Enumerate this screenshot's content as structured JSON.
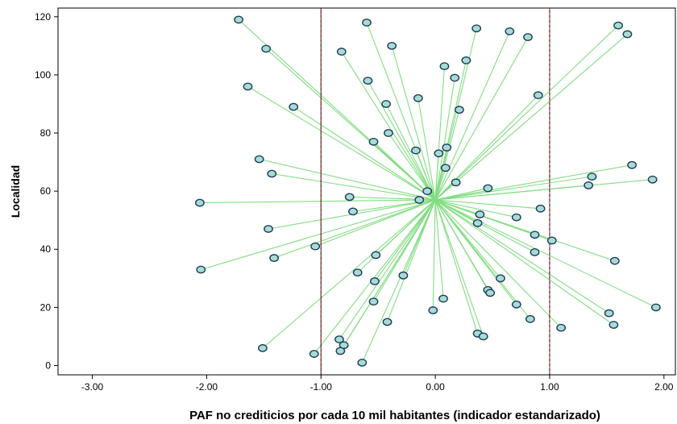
{
  "chart_data": {
    "type": "scatter",
    "xlabel": "PAF no crediticios por cada 10 mil habitantes (indicador estandarizado)",
    "ylabel": "Localidad",
    "xlim": [
      -3.3,
      2.1
    ],
    "ylim": [
      -3.2,
      123
    ],
    "x_ticks": [
      "-3.00",
      "-2.00",
      "-1.00",
      "0.00",
      "1.00",
      "2.00"
    ],
    "y_ticks": [
      "0",
      "20",
      "40",
      "60",
      "80",
      "100",
      "120"
    ],
    "reference_lines_x": [
      -1.0,
      1.0
    ],
    "centroid": [
      0.0,
      57
    ],
    "grid": false,
    "colors": {
      "marker_fill": "#a7dcd5",
      "marker_edge": "#1d3a5a",
      "spoke": "#82dd82",
      "reference_line": "#c0392b",
      "frame": "#000000"
    },
    "points": [
      {
        "x": -1.72,
        "y": 119
      },
      {
        "x": -0.6,
        "y": 118
      },
      {
        "x": 1.6,
        "y": 117
      },
      {
        "x": 0.36,
        "y": 116
      },
      {
        "x": 0.65,
        "y": 115
      },
      {
        "x": 1.68,
        "y": 114
      },
      {
        "x": 0.81,
        "y": 113
      },
      {
        "x": -0.38,
        "y": 110
      },
      {
        "x": -1.48,
        "y": 109
      },
      {
        "x": -0.82,
        "y": 108
      },
      {
        "x": 0.27,
        "y": 105
      },
      {
        "x": 0.08,
        "y": 103
      },
      {
        "x": 0.17,
        "y": 99
      },
      {
        "x": -0.59,
        "y": 98
      },
      {
        "x": -1.64,
        "y": 96
      },
      {
        "x": 0.9,
        "y": 93
      },
      {
        "x": -0.15,
        "y": 92
      },
      {
        "x": -0.43,
        "y": 90
      },
      {
        "x": -1.24,
        "y": 89
      },
      {
        "x": 0.21,
        "y": 88
      },
      {
        "x": -0.41,
        "y": 80
      },
      {
        "x": -0.54,
        "y": 77
      },
      {
        "x": 0.1,
        "y": 75
      },
      {
        "x": -0.17,
        "y": 74
      },
      {
        "x": 0.03,
        "y": 73
      },
      {
        "x": -1.54,
        "y": 71
      },
      {
        "x": 1.72,
        "y": 69
      },
      {
        "x": 0.09,
        "y": 68
      },
      {
        "x": -1.43,
        "y": 66
      },
      {
        "x": 1.37,
        "y": 65
      },
      {
        "x": 1.9,
        "y": 64
      },
      {
        "x": 0.18,
        "y": 63
      },
      {
        "x": 1.34,
        "y": 62
      },
      {
        "x": 0.46,
        "y": 61
      },
      {
        "x": -0.07,
        "y": 60
      },
      {
        "x": -0.75,
        "y": 58
      },
      {
        "x": -0.14,
        "y": 57
      },
      {
        "x": -2.06,
        "y": 56
      },
      {
        "x": 0.92,
        "y": 54
      },
      {
        "x": -0.72,
        "y": 53
      },
      {
        "x": 0.39,
        "y": 52
      },
      {
        "x": 0.71,
        "y": 51
      },
      {
        "x": 0.37,
        "y": 49
      },
      {
        "x": -1.46,
        "y": 47
      },
      {
        "x": 0.87,
        "y": 45
      },
      {
        "x": 1.02,
        "y": 43
      },
      {
        "x": -1.05,
        "y": 41
      },
      {
        "x": 0.87,
        "y": 39
      },
      {
        "x": -0.52,
        "y": 38
      },
      {
        "x": -1.41,
        "y": 37
      },
      {
        "x": 1.57,
        "y": 36
      },
      {
        "x": -2.05,
        "y": 33
      },
      {
        "x": -0.68,
        "y": 32
      },
      {
        "x": -0.28,
        "y": 31
      },
      {
        "x": 0.57,
        "y": 30
      },
      {
        "x": -0.53,
        "y": 29
      },
      {
        "x": 0.46,
        "y": 26
      },
      {
        "x": 0.48,
        "y": 25
      },
      {
        "x": 0.07,
        "y": 23
      },
      {
        "x": -0.54,
        "y": 22
      },
      {
        "x": 0.71,
        "y": 21
      },
      {
        "x": 1.93,
        "y": 20
      },
      {
        "x": -0.02,
        "y": 19
      },
      {
        "x": 1.52,
        "y": 18
      },
      {
        "x": 0.83,
        "y": 16
      },
      {
        "x": -0.42,
        "y": 15
      },
      {
        "x": 1.56,
        "y": 14
      },
      {
        "x": 1.1,
        "y": 13
      },
      {
        "x": 0.37,
        "y": 11
      },
      {
        "x": 0.42,
        "y": 10
      },
      {
        "x": -0.84,
        "y": 9
      },
      {
        "x": -0.8,
        "y": 7
      },
      {
        "x": -1.51,
        "y": 6
      },
      {
        "x": -0.83,
        "y": 5
      },
      {
        "x": -1.06,
        "y": 4
      },
      {
        "x": -0.64,
        "y": 1
      }
    ]
  }
}
